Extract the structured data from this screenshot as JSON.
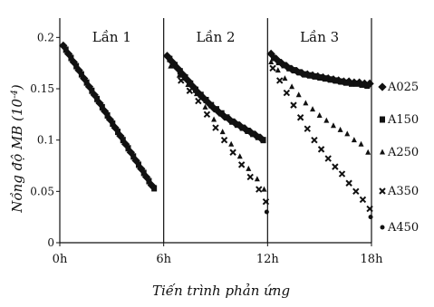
{
  "chart_data": {
    "type": "scatter",
    "title": "",
    "xlabel": "Tiến trình phản ứng",
    "ylabel_main": "Nồng độ MB (10",
    "ylabel_exp": "-4",
    "ylabel_close": ")",
    "xlim": [
      0,
      18
    ],
    "ylim": [
      0,
      0.21
    ],
    "x_ticks": [
      {
        "value": 0,
        "label": "0h"
      },
      {
        "value": 6,
        "label": "6h"
      },
      {
        "value": 12,
        "label": "12h"
      },
      {
        "value": 18,
        "label": "18h"
      }
    ],
    "y_ticks": [
      {
        "value": 0,
        "label": "0"
      },
      {
        "value": 0.05,
        "label": "0.05"
      },
      {
        "value": 0.1,
        "label": "0.1"
      },
      {
        "value": 0.15,
        "label": "0.15"
      },
      {
        "value": 0.2,
        "label": "0.2"
      }
    ],
    "segments": [
      {
        "label": "Lần 1",
        "x_start": 0,
        "x_end": 6
      },
      {
        "label": "Lần 2",
        "x_start": 6,
        "x_end": 12
      },
      {
        "label": "Lần 3",
        "x_start": 12,
        "x_end": 18
      }
    ],
    "grid": false,
    "legend_position": "right",
    "series": [
      {
        "name": "A025",
        "marker": "diamond",
        "points": [
          [
            0.2,
            0.192
          ],
          [
            0.5,
            0.184
          ],
          [
            0.8,
            0.176
          ],
          [
            1.1,
            0.168
          ],
          [
            1.4,
            0.16
          ],
          [
            1.7,
            0.152
          ],
          [
            2.0,
            0.144
          ],
          [
            2.3,
            0.136
          ],
          [
            2.6,
            0.128
          ],
          [
            2.9,
            0.12
          ],
          [
            3.2,
            0.112
          ],
          [
            3.5,
            0.104
          ],
          [
            3.8,
            0.096
          ],
          [
            4.1,
            0.088
          ],
          [
            4.4,
            0.08
          ],
          [
            4.7,
            0.072
          ],
          [
            5.0,
            0.064
          ],
          [
            5.3,
            0.056
          ],
          [
            6.2,
            0.182
          ],
          [
            6.5,
            0.176
          ],
          [
            6.8,
            0.17
          ],
          [
            7.1,
            0.164
          ],
          [
            7.4,
            0.158
          ],
          [
            7.7,
            0.152
          ],
          [
            8.0,
            0.146
          ],
          [
            8.3,
            0.141
          ],
          [
            8.6,
            0.136
          ],
          [
            8.9,
            0.131
          ],
          [
            9.2,
            0.127
          ],
          [
            9.5,
            0.123
          ],
          [
            9.8,
            0.12
          ],
          [
            10.1,
            0.117
          ],
          [
            10.4,
            0.114
          ],
          [
            10.7,
            0.111
          ],
          [
            11.0,
            0.108
          ],
          [
            11.3,
            0.105
          ],
          [
            11.6,
            0.102
          ],
          [
            12.2,
            0.184
          ],
          [
            12.5,
            0.179
          ],
          [
            12.8,
            0.175
          ],
          [
            13.1,
            0.172
          ],
          [
            13.4,
            0.169
          ],
          [
            13.7,
            0.167
          ],
          [
            14.0,
            0.165
          ],
          [
            14.3,
            0.164
          ],
          [
            14.6,
            0.163
          ],
          [
            14.9,
            0.162
          ],
          [
            15.2,
            0.161
          ],
          [
            15.5,
            0.16
          ],
          [
            15.8,
            0.159
          ],
          [
            16.1,
            0.158
          ],
          [
            16.4,
            0.157
          ],
          [
            16.7,
            0.157
          ],
          [
            17.0,
            0.156
          ],
          [
            17.3,
            0.156
          ],
          [
            17.6,
            0.155
          ],
          [
            17.9,
            0.155
          ]
        ]
      },
      {
        "name": "A150",
        "marker": "square",
        "points": [
          [
            0.35,
            0.188
          ],
          [
            0.65,
            0.18
          ],
          [
            0.95,
            0.172
          ],
          [
            1.25,
            0.164
          ],
          [
            1.55,
            0.156
          ],
          [
            1.85,
            0.148
          ],
          [
            2.15,
            0.14
          ],
          [
            2.45,
            0.132
          ],
          [
            2.75,
            0.124
          ],
          [
            3.05,
            0.116
          ],
          [
            3.35,
            0.108
          ],
          [
            3.65,
            0.1
          ],
          [
            3.95,
            0.092
          ],
          [
            4.25,
            0.084
          ],
          [
            4.55,
            0.076
          ],
          [
            4.85,
            0.068
          ],
          [
            5.15,
            0.06
          ],
          [
            5.45,
            0.053
          ],
          [
            6.35,
            0.179
          ],
          [
            6.65,
            0.173
          ],
          [
            6.95,
            0.167
          ],
          [
            7.25,
            0.161
          ],
          [
            7.55,
            0.155
          ],
          [
            7.85,
            0.149
          ],
          [
            8.15,
            0.144
          ],
          [
            8.45,
            0.139
          ],
          [
            8.75,
            0.134
          ],
          [
            9.05,
            0.13
          ],
          [
            9.35,
            0.126
          ],
          [
            9.65,
            0.122
          ],
          [
            9.95,
            0.118
          ],
          [
            10.25,
            0.115
          ],
          [
            10.55,
            0.112
          ],
          [
            10.85,
            0.109
          ],
          [
            11.15,
            0.106
          ],
          [
            11.45,
            0.103
          ],
          [
            11.75,
            0.1
          ],
          [
            12.35,
            0.18
          ],
          [
            12.65,
            0.176
          ],
          [
            12.95,
            0.173
          ],
          [
            13.25,
            0.17
          ],
          [
            13.55,
            0.168
          ],
          [
            13.85,
            0.166
          ],
          [
            14.15,
            0.164
          ],
          [
            14.45,
            0.163
          ],
          [
            14.75,
            0.162
          ],
          [
            15.05,
            0.161
          ],
          [
            15.35,
            0.16
          ],
          [
            15.65,
            0.159
          ],
          [
            15.95,
            0.158
          ],
          [
            16.25,
            0.157
          ],
          [
            16.55,
            0.156
          ],
          [
            16.85,
            0.155
          ],
          [
            17.15,
            0.155
          ],
          [
            17.45,
            0.154
          ],
          [
            17.75,
            0.153
          ]
        ]
      },
      {
        "name": "A250",
        "marker": "triangle",
        "points": [
          [
            6.4,
            0.172
          ],
          [
            6.9,
            0.163
          ],
          [
            7.4,
            0.154
          ],
          [
            7.9,
            0.145
          ],
          [
            8.4,
            0.132
          ],
          [
            8.9,
            0.12
          ],
          [
            9.4,
            0.108
          ],
          [
            9.9,
            0.096
          ],
          [
            10.4,
            0.084
          ],
          [
            10.9,
            0.072
          ],
          [
            11.4,
            0.062
          ],
          [
            11.8,
            0.052
          ],
          [
            12.2,
            0.176
          ],
          [
            12.6,
            0.168
          ],
          [
            13.0,
            0.16
          ],
          [
            13.4,
            0.152
          ],
          [
            13.8,
            0.144
          ],
          [
            14.2,
            0.136
          ],
          [
            14.6,
            0.13
          ],
          [
            15.0,
            0.124
          ],
          [
            15.4,
            0.119
          ],
          [
            15.8,
            0.114
          ],
          [
            16.2,
            0.11
          ],
          [
            16.6,
            0.106
          ],
          [
            17.0,
            0.1
          ],
          [
            17.4,
            0.096
          ],
          [
            17.8,
            0.088
          ]
        ]
      },
      {
        "name": "A350",
        "marker": "cross",
        "points": [
          [
            7.0,
            0.158
          ],
          [
            7.5,
            0.148
          ],
          [
            8.0,
            0.138
          ],
          [
            8.5,
            0.125
          ],
          [
            9.0,
            0.112
          ],
          [
            9.5,
            0.1
          ],
          [
            10.0,
            0.088
          ],
          [
            10.5,
            0.076
          ],
          [
            11.0,
            0.064
          ],
          [
            11.5,
            0.052
          ],
          [
            11.9,
            0.04
          ],
          [
            12.3,
            0.17
          ],
          [
            12.7,
            0.158
          ],
          [
            13.1,
            0.146
          ],
          [
            13.5,
            0.134
          ],
          [
            13.9,
            0.122
          ],
          [
            14.3,
            0.111
          ],
          [
            14.7,
            0.1
          ],
          [
            15.1,
            0.091
          ],
          [
            15.5,
            0.082
          ],
          [
            15.9,
            0.074
          ],
          [
            16.3,
            0.067
          ],
          [
            16.7,
            0.058
          ],
          [
            17.1,
            0.05
          ],
          [
            17.5,
            0.042
          ],
          [
            17.9,
            0.033
          ]
        ]
      },
      {
        "name": "A450",
        "marker": "dot",
        "points": [
          [
            11.95,
            0.03
          ],
          [
            17.95,
            0.025
          ]
        ]
      }
    ]
  }
}
